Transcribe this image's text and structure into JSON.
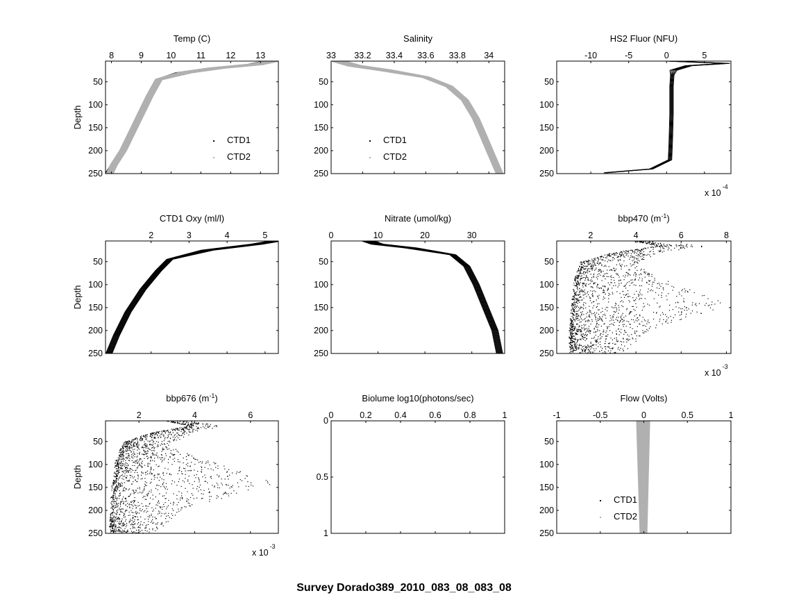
{
  "figure": {
    "suptitle": "Survey Dorado389_2010_083_08_083_08",
    "colors": {
      "ctd1": "#000000",
      "ctd2": "#b0b0b0",
      "axes": "#000000"
    }
  },
  "chart_data": [
    {
      "id": "temp",
      "type": "line",
      "title": "Temp (C)",
      "ylabel": "Depth",
      "xlim": [
        7.8,
        13.6
      ],
      "xticks": [
        8,
        9,
        10,
        11,
        12,
        13
      ],
      "ylim": [
        250,
        5
      ],
      "yticks": [
        50,
        100,
        150,
        200,
        250
      ],
      "legend": [
        "CTD1",
        "CTD2"
      ],
      "legend_position": "bottom-right",
      "series": [
        {
          "name": "CTD1",
          "color": "#000000",
          "x": [
            13.3,
            12.8,
            11.5,
            10.4,
            9.6,
            9.3,
            9.0,
            8.7,
            8.4,
            8.1,
            7.9
          ],
          "y": [
            5,
            12,
            20,
            30,
            45,
            80,
            120,
            160,
            200,
            230,
            250
          ]
        },
        {
          "name": "CTD2",
          "color": "#b0b0b0",
          "x": [
            13.4,
            12.9,
            11.6,
            10.5,
            9.6,
            9.3,
            9.0,
            8.7,
            8.4,
            8.1,
            7.95
          ],
          "y": [
            5,
            12,
            20,
            30,
            45,
            80,
            120,
            160,
            200,
            230,
            250
          ]
        }
      ]
    },
    {
      "id": "salinity",
      "type": "line",
      "title": "Salinity",
      "ylabel": "",
      "xlim": [
        33.0,
        34.1
      ],
      "xticks": [
        33,
        33.2,
        33.4,
        33.6,
        33.8,
        34
      ],
      "ylim": [
        250,
        5
      ],
      "yticks": [
        50,
        100,
        150,
        200,
        250
      ],
      "legend": [
        "CTD1",
        "CTD2"
      ],
      "legend_position": "bottom-left",
      "series": [
        {
          "name": "CTD1",
          "color": "#000000",
          "x": [
            33.05,
            33.15,
            33.35,
            33.6,
            33.75,
            33.85,
            33.92,
            33.97,
            34.02,
            34.07
          ],
          "y": [
            5,
            15,
            25,
            40,
            60,
            90,
            130,
            170,
            210,
            250
          ]
        },
        {
          "name": "CTD2",
          "color": "#b0b0b0",
          "x": [
            33.05,
            33.15,
            33.35,
            33.6,
            33.75,
            33.85,
            33.92,
            33.97,
            34.02,
            34.07
          ],
          "y": [
            5,
            15,
            25,
            40,
            60,
            90,
            130,
            170,
            210,
            250
          ]
        }
      ]
    },
    {
      "id": "hs2fluor",
      "type": "line",
      "title": "HS2 Fluor (NFU)",
      "ylabel": "",
      "xlim": [
        -14.5,
        8.5
      ],
      "xticks": [
        -10,
        -5,
        0,
        5
      ],
      "xmultiplier": "x 10",
      "xmultiplier_exp": "-4",
      "ylim": [
        250,
        5
      ],
      "yticks": [
        50,
        100,
        150,
        200,
        250
      ],
      "series": [
        {
          "name": "CTD1",
          "color": "#000000",
          "x": [
            0.5,
            8.0,
            3.0,
            1.0,
            0.8,
            0.7,
            0.7,
            0.6,
            0.5,
            -2.0,
            -8.0
          ],
          "y": [
            5,
            10,
            15,
            25,
            35,
            60,
            120,
            180,
            220,
            240,
            248
          ]
        }
      ]
    },
    {
      "id": "oxy",
      "type": "line",
      "title": "CTD1 Oxy (ml/l)",
      "ylabel": "Depth",
      "xlim": [
        0.8,
        5.35
      ],
      "xticks": [
        2,
        3,
        4,
        5
      ],
      "ylim": [
        250,
        5
      ],
      "yticks": [
        50,
        100,
        150,
        200,
        250
      ],
      "series": [
        {
          "name": "CTD1",
          "color": "#000000",
          "x": [
            5.3,
            4.8,
            3.5,
            2.5,
            2.2,
            1.8,
            1.4,
            1.1,
            0.9
          ],
          "y": [
            5,
            12,
            25,
            45,
            70,
            110,
            160,
            210,
            250
          ]
        }
      ]
    },
    {
      "id": "nitrate",
      "type": "line",
      "title": "Nitrate (umol/kg)",
      "ylabel": "",
      "xlim": [
        0,
        37
      ],
      "xticks": [
        0,
        10,
        20,
        30
      ],
      "ylim": [
        250,
        5
      ],
      "yticks": [
        50,
        100,
        150,
        200,
        250
      ],
      "series": [
        {
          "name": "CTD1",
          "color": "#000000",
          "x": [
            8,
            10,
            17,
            26,
            29,
            31,
            33,
            35,
            36
          ],
          "y": [
            5,
            12,
            20,
            35,
            60,
            100,
            150,
            200,
            250
          ]
        }
      ]
    },
    {
      "id": "bbp470",
      "type": "scatter",
      "title": "bbp470 (m",
      "title_sup": "-1",
      "title_tail": ")",
      "ylabel": "",
      "xlim": [
        0.5,
        8.2
      ],
      "xticks": [
        2,
        4,
        6,
        8
      ],
      "xmultiplier": "x 10",
      "xmultiplier_exp": "-3",
      "ylim": [
        250,
        5
      ],
      "yticks": [
        50,
        100,
        150,
        200,
        250
      ],
      "series": [
        {
          "name": "CTD1",
          "color": "#000000",
          "profile_x": [
            4.0,
            5.0,
            3.0,
            1.6,
            1.3,
            1.2,
            1.1,
            1.1
          ],
          "profile_y": [
            5,
            15,
            30,
            50,
            90,
            140,
            200,
            250
          ],
          "max_x": [
            4.6,
            7.2,
            5.0,
            4.0,
            6.0,
            8.1,
            4.5,
            3.5
          ],
          "max_y": [
            5,
            15,
            30,
            60,
            100,
            145,
            200,
            250
          ]
        }
      ]
    },
    {
      "id": "bbp676",
      "type": "scatter",
      "title": "bbp676 (m",
      "title_sup": "-1",
      "title_tail": ")",
      "ylabel": "Depth",
      "xlim": [
        0.8,
        7.0
      ],
      "xticks": [
        2,
        4,
        6
      ],
      "xmultiplier": "x 10",
      "xmultiplier_exp": "-3",
      "ylim": [
        250,
        5
      ],
      "yticks": [
        50,
        100,
        150,
        200,
        250
      ],
      "series": [
        {
          "name": "CTD1",
          "color": "#000000",
          "profile_x": [
            3.0,
            3.8,
            2.5,
            1.5,
            1.2,
            1.1,
            1.0,
            1.0
          ],
          "profile_y": [
            5,
            15,
            30,
            50,
            90,
            140,
            200,
            250
          ],
          "max_x": [
            3.8,
            5.0,
            3.9,
            3.0,
            5.0,
            6.9,
            3.5,
            2.5
          ],
          "max_y": [
            5,
            15,
            30,
            60,
            100,
            140,
            200,
            250
          ]
        }
      ]
    },
    {
      "id": "biolume",
      "type": "line",
      "title": "Biolume log10(photons/sec)",
      "ylabel": "",
      "xlim": [
        0,
        1
      ],
      "xticks": [
        0,
        0.2,
        0.4,
        0.6,
        0.8,
        1
      ],
      "ylim": [
        1,
        0
      ],
      "yticks": [
        0,
        0.5,
        1
      ],
      "series": []
    },
    {
      "id": "flow",
      "type": "line",
      "title": "Flow (Volts)",
      "ylabel": "",
      "xlim": [
        -1,
        1
      ],
      "xticks": [
        -1,
        -0.5,
        0,
        0.5,
        1
      ],
      "ylim": [
        250,
        5
      ],
      "yticks": [
        50,
        100,
        150,
        200,
        250
      ],
      "legend": [
        "CTD1",
        "CTD2"
      ],
      "legend_position": "bottom-left",
      "series": [
        {
          "name": "CTD1",
          "color": "#000000",
          "x": [],
          "y": []
        },
        {
          "name": "CTD2",
          "color": "#b0b0b0",
          "x": [
            0,
            0
          ],
          "y": [
            5,
            250
          ]
        }
      ]
    }
  ]
}
